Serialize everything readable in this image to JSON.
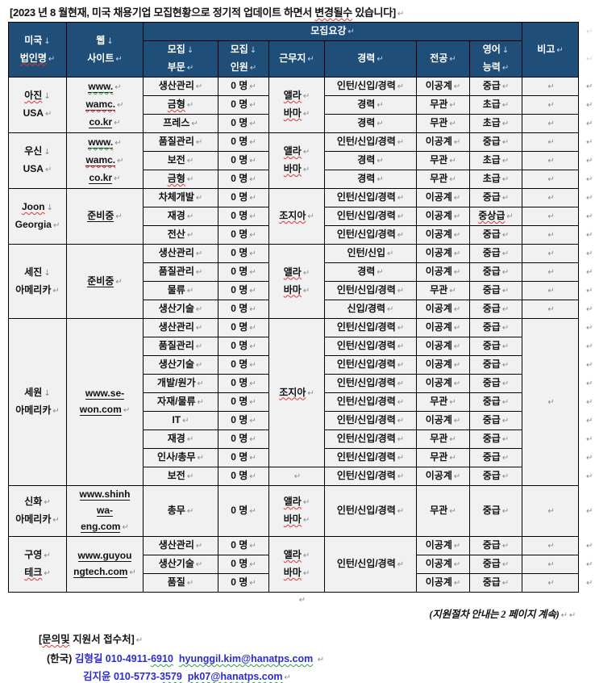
{
  "title": {
    "segments": [
      {
        "t": "[2023 년 8 월현재, 미국 채용기업 모집현황으로 정기적 업데이트 하면서 "
      },
      {
        "t": "변경될수",
        "wavy": "red"
      },
      {
        "t": " 있습니다]"
      }
    ],
    "mark": "↵"
  },
  "table": {
    "header": {
      "company": [
        {
          "t": "미국",
          "mark": "↓"
        },
        {
          "t": "법인명",
          "wavy": "red",
          "mark": "↵"
        }
      ],
      "website": [
        {
          "t": "웹",
          "mark": "↓"
        },
        {
          "t": "사이트",
          "mark": "↵"
        }
      ],
      "group": [
        {
          "t": "모집요강",
          "mark": "↵"
        }
      ],
      "dept": [
        {
          "t": "모집",
          "mark": "↓"
        },
        {
          "t": "부문",
          "mark": "↵"
        }
      ],
      "count": [
        {
          "t": "모집",
          "mark": "↓"
        },
        {
          "t": "인원",
          "mark": "↵"
        }
      ],
      "location": [
        {
          "t": "근무지",
          "mark": "↵"
        }
      ],
      "career": [
        {
          "t": "경력",
          "mark": "↵"
        }
      ],
      "major": [
        {
          "t": "전공",
          "mark": "↵"
        }
      ],
      "english": [
        {
          "t": "영어",
          "mark": "↓"
        },
        {
          "t": "능력",
          "mark": "↵"
        }
      ],
      "note": [
        {
          "t": "비고",
          "mark": "↵"
        }
      ]
    },
    "companies": [
      {
        "name": [
          {
            "t": "아진",
            "wavy": "red",
            "mark": "↓"
          },
          {
            "t": "USA",
            "mark": "↵"
          }
        ],
        "web": [
          {
            "t": "www.",
            "u": 1,
            "wavy": "green",
            "mark": "↵"
          },
          {
            "t": "wamc.",
            "u": 1,
            "wavy": "red",
            "mark": "↵"
          },
          {
            "t": "co.kr",
            "u": 1,
            "mark": "↵"
          }
        ],
        "loc": [
          {
            "t": "앨라",
            "wavy": "red",
            "mark": "↵"
          },
          {
            "t": "바마",
            "wavy": "red",
            "mark": "↵"
          }
        ],
        "rows": [
          {
            "dept": "생산관리",
            "count": "0 명",
            "career": "인턴/신입/경력",
            "major": "이공계",
            "english": "중급",
            "note": ""
          },
          {
            "dept": {
              "t": "금형",
              "wavy": "red"
            },
            "count": "0 명",
            "career": "경력",
            "major": "무관",
            "english": "초급",
            "note": ""
          },
          {
            "dept": "프레스",
            "count": "0 명",
            "career": "경력",
            "major": "무관",
            "english": "초급",
            "note": ""
          }
        ]
      },
      {
        "name": [
          {
            "t": "우신",
            "mark": "↓"
          },
          {
            "t": "USA",
            "mark": "↵"
          }
        ],
        "web": [
          {
            "t": "www.",
            "u": 1,
            "wavy": "green",
            "mark": "↵"
          },
          {
            "t": "wamc.",
            "u": 1,
            "wavy": "red",
            "mark": "↵"
          },
          {
            "t": "co.kr",
            "u": 1,
            "mark": "↵"
          }
        ],
        "loc": [
          {
            "t": "앨라",
            "wavy": "red",
            "mark": "↵"
          },
          {
            "t": "바마",
            "wavy": "red",
            "mark": "↵"
          }
        ],
        "rows": [
          {
            "dept": "품질관리",
            "count": "0 명",
            "career": "인턴/신입/경력",
            "major": "이공계",
            "english": "중급",
            "note": ""
          },
          {
            "dept": "보전",
            "count": "0 명",
            "career": "경력",
            "major": "무관",
            "english": "초급",
            "note": ""
          },
          {
            "dept": {
              "t": "금형",
              "wavy": "red"
            },
            "count": "0 명",
            "career": "경력",
            "major": "무관",
            "english": "초급",
            "note": ""
          }
        ]
      },
      {
        "name": [
          {
            "t": "Joon",
            "wavy": "red",
            "mark": "↓"
          },
          {
            "t": "Georgia",
            "mark": "↵"
          }
        ],
        "web": [
          {
            "t": "준비중",
            "u": 1,
            "mark": "↵"
          }
        ],
        "loc": [
          {
            "t": "조지아",
            "wavy": "red",
            "mark": "↵"
          }
        ],
        "rows": [
          {
            "dept": "차체개발",
            "count": "0 명",
            "career": "인턴/신입/경력",
            "major": "이공계",
            "english": "중급",
            "note": ""
          },
          {
            "dept": "재경",
            "count": "0 명",
            "career": "인턴/신입/경력",
            "major": "이공계",
            "english": {
              "t": "중상급",
              "wavy": "red"
            },
            "note": ""
          },
          {
            "dept": "전산",
            "count": "0 명",
            "career": "인턴/신입/경력",
            "major": "이공계",
            "english": "중급",
            "note": ""
          }
        ]
      },
      {
        "name": [
          {
            "t": "세진",
            "mark": "↓"
          },
          {
            "t": "아메리카",
            "mark": "↵"
          }
        ],
        "web": [
          {
            "t": "준비중",
            "u": 1,
            "mark": "↵"
          }
        ],
        "loc": [
          {
            "t": "앨라",
            "wavy": "red",
            "mark": "↵"
          },
          {
            "t": "바마",
            "wavy": "red",
            "mark": "↵"
          }
        ],
        "rows": [
          {
            "dept": "생산관리",
            "count": "0 명",
            "career": "인턴/신입",
            "major": "이공계",
            "english": "중급",
            "note": ""
          },
          {
            "dept": "품질관리",
            "count": "0 명",
            "career": "경력",
            "major": "이공계",
            "english": "중급",
            "note": ""
          },
          {
            "dept": "물류",
            "count": "0 명",
            "career": "인턴/신입/경력",
            "major": "무관",
            "english": "중급",
            "note": ""
          },
          {
            "dept": "생산기술",
            "count": "0 명",
            "career": "신입/경력",
            "major": "이공계",
            "english": "중급",
            "note": ""
          }
        ]
      },
      {
        "name": [
          {
            "t": "세원",
            "mark": "↓"
          },
          {
            "t": "아메리카",
            "mark": "↵"
          }
        ],
        "web": [
          {
            "t": "www.se-",
            "u": 1
          },
          {
            "t": "won.com",
            "u": 1,
            "mark": "↵"
          }
        ],
        "loc": [
          {
            "t": "조지아",
            "wavy": "red",
            "mark": "↵"
          }
        ],
        "loc_span": 8,
        "loc2": [
          {
            "t": "",
            "mark": "↵"
          }
        ],
        "note_span": 9,
        "rows": [
          {
            "dept": "생산관리",
            "count": "0 명",
            "career": "인턴/신입/경력",
            "major": "이공계",
            "english": "중급"
          },
          {
            "dept": "품질관리",
            "count": "0 명",
            "career": "인턴/신입/경력",
            "major": "이공계",
            "english": "중급"
          },
          {
            "dept": "생산기술",
            "count": "0 명",
            "career": "인턴/신입/경력",
            "major": "이공계",
            "english": "중급"
          },
          {
            "dept": "개발/원가",
            "count": "0 명",
            "career": "인턴/신입/경력",
            "major": "이공계",
            "english": "중급"
          },
          {
            "dept": "자재/물류",
            "count": "0 명",
            "career": "인턴/신입/경력",
            "major": "무관",
            "english": "중급"
          },
          {
            "dept": "IT",
            "count": "0 명",
            "career": "인턴/신입/경력",
            "major": "이공계",
            "english": "중급"
          },
          {
            "dept": "재경",
            "count": "0 명",
            "career": "인턴/신입/경력",
            "major": "무관",
            "english": "중급"
          },
          {
            "dept": "인사/총무",
            "count": "0 명",
            "career": "인턴/신입/경력",
            "major": "무관",
            "english": "중급"
          },
          {
            "dept": "보전",
            "count": "0 명",
            "career": "인턴/신입/경력",
            "major": "이공계",
            "english": "중급"
          }
        ]
      },
      {
        "name": [
          {
            "t": "신화",
            "mark": "↵"
          },
          {
            "t": "아메리카",
            "mark": "↵"
          }
        ],
        "web": [
          {
            "t": "www.shinh",
            "u": 1
          },
          {
            "t": "wa-",
            "u": 1
          },
          {
            "t": "eng.com",
            "u": 1,
            "mark": "↵"
          }
        ],
        "loc": [
          {
            "t": "앨라",
            "wavy": "red",
            "mark": "↵"
          },
          {
            "t": "바마",
            "wavy": "red",
            "mark": "↵"
          }
        ],
        "rows": [
          {
            "dept": "총무",
            "count": "0 명",
            "career": "인턴/신입/경력",
            "major": "무관",
            "english": "중급",
            "note": ""
          }
        ]
      },
      {
        "name": [
          {
            "t": "구영",
            "mark": "↵"
          },
          {
            "t": "테크",
            "wavy": "red",
            "mark": "↵"
          }
        ],
        "web": [
          {
            "t": "www.guyou",
            "u": 1
          },
          {
            "t": "ngtech.com",
            "u": 1,
            "mark": "↵"
          }
        ],
        "loc": [
          {
            "t": "앨라",
            "wavy": "red",
            "mark": "↵"
          },
          {
            "t": "바마",
            "wavy": "red",
            "mark": "↵"
          }
        ],
        "career_merged": [
          {
            "t": "인턴/신입/경력",
            "mark": "↵"
          }
        ],
        "rows": [
          {
            "dept": "생산관리",
            "count": "0 명",
            "major": "이공계",
            "english": "중급",
            "note": ""
          },
          {
            "dept": "생산기술",
            "count": "0 명",
            "major": "이공계",
            "english": "중급",
            "note": ""
          },
          {
            "dept": "품질",
            "count": "0 명",
            "major": "이공계",
            "english": "중급",
            "note": ""
          }
        ]
      }
    ]
  },
  "after_table_mark": "↵",
  "footer": {
    "page_note": {
      "segments": [
        {
          "t": "(지원절차 안내는 2 페이지 계속)"
        }
      ],
      "marks": [
        "↵",
        "↵"
      ]
    },
    "contact_title": {
      "segments": [
        {
          "t": "["
        },
        {
          "t": "문의및",
          "wavy": "red"
        },
        {
          "t": " 지원서 접수처]"
        }
      ],
      "mark": "↵"
    },
    "contact_lines": [
      {
        "prefix": "(한국) ",
        "segments": [
          {
            "t": "김형길 010-4911-",
            "blue": 1
          },
          {
            "t": "6910",
            "blue": 1,
            "wavy": "green"
          },
          {
            "t": "  "
          },
          {
            "t": "hyunggil.kim@hanatps.com",
            "blue": 1,
            "wavy": "green",
            "link": 1
          },
          {
            "t": " "
          }
        ],
        "mark": "↵"
      },
      {
        "prefix": "",
        "segments": [
          {
            "t": "김지윤 010-5773-",
            "blue": 1
          },
          {
            "t": "3579",
            "blue": 1,
            "wavy": "green"
          },
          {
            "t": "  "
          },
          {
            "t": "pk07@hanatps.com",
            "blue": 1,
            "wavy": "green",
            "link": 1
          }
        ],
        "mark": "↵"
      }
    ]
  },
  "colors": {
    "header_bg": "#1F4E79",
    "header_text": "#FFFFFF",
    "cell_bg": "#F1F1F1",
    "border": "#000000",
    "link_blue": "#2B2BD2",
    "spellcheck_red": "#E03434",
    "spellcheck_green": "#2F9E44",
    "format_mark_gray": "#8A8A8A"
  }
}
